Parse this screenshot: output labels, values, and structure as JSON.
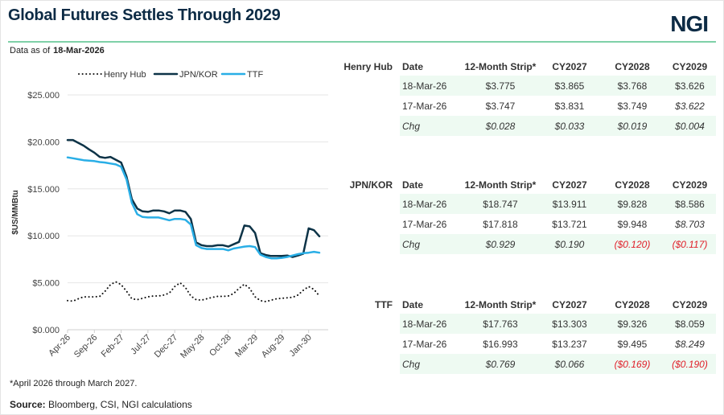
{
  "header": {
    "title": "Global Futures Settles Through 2029",
    "logo": "NGI",
    "as_of_label": "Data as of",
    "as_of_date": "18-Mar-2026"
  },
  "chart_data": {
    "type": "line",
    "ylabel": "$US/MMBtu",
    "ylim": [
      0,
      25
    ],
    "yticks": [
      "$0.000",
      "$5.000",
      "$10.000",
      "$15.000",
      "$20.000",
      "$25.000"
    ],
    "xticks": [
      "Apr-26",
      "Sep-26",
      "Feb-27",
      "Jul-27",
      "Dec-27",
      "May-28",
      "Oct-28",
      "Mar-29",
      "Aug-29",
      "Jan-30"
    ],
    "x_start": "Apr-26",
    "x_end": "Mar-30",
    "grid": "horizontal",
    "legend": "top",
    "series": [
      {
        "name": "Henry Hub",
        "style": "dotted",
        "color": "#111111",
        "values": [
          3.1,
          3.05,
          3.3,
          3.5,
          3.5,
          3.5,
          3.55,
          4.1,
          4.8,
          5.1,
          4.8,
          4.1,
          3.3,
          3.2,
          3.35,
          3.5,
          3.6,
          3.6,
          3.7,
          3.9,
          4.6,
          5.0,
          4.5,
          3.6,
          3.2,
          3.15,
          3.3,
          3.45,
          3.55,
          3.55,
          3.6,
          3.85,
          4.4,
          4.85,
          4.4,
          3.5,
          3.1,
          3.0,
          3.15,
          3.3,
          3.35,
          3.4,
          3.45,
          3.7,
          4.2,
          4.6,
          4.3,
          3.6
        ]
      },
      {
        "name": "JPN/KOR",
        "style": "solid",
        "color": "#0d3347",
        "values": [
          20.2,
          20.2,
          19.9,
          19.6,
          19.2,
          18.85,
          18.4,
          18.3,
          18.4,
          18.1,
          17.8,
          16.3,
          13.9,
          12.9,
          12.6,
          12.55,
          12.7,
          12.7,
          12.6,
          12.4,
          12.7,
          12.7,
          12.55,
          11.8,
          9.3,
          9.0,
          8.9,
          8.9,
          9.0,
          9.0,
          8.85,
          9.1,
          9.35,
          11.1,
          11.0,
          10.3,
          8.15,
          7.95,
          7.85,
          7.85,
          7.85,
          7.9,
          7.75,
          7.9,
          8.1,
          10.8,
          10.6,
          9.95
        ]
      },
      {
        "name": "TTF",
        "style": "solid",
        "color": "#29aee6",
        "values": [
          18.35,
          18.25,
          18.15,
          18.05,
          18.0,
          17.95,
          17.85,
          17.8,
          17.7,
          17.6,
          17.35,
          16.0,
          13.5,
          12.3,
          12.0,
          11.95,
          11.95,
          11.95,
          11.8,
          11.65,
          11.8,
          11.8,
          11.7,
          11.2,
          9.0,
          8.7,
          8.6,
          8.6,
          8.6,
          8.6,
          8.45,
          8.65,
          8.75,
          8.85,
          8.9,
          8.8,
          8.0,
          7.75,
          7.6,
          7.6,
          7.65,
          7.75,
          7.9,
          8.05,
          8.15,
          8.2,
          8.3,
          8.2
        ]
      }
    ]
  },
  "tables": [
    {
      "name": "Henry Hub",
      "headers": [
        "Date",
        "12-Month Strip*",
        "CY2027",
        "CY2028",
        "CY2029"
      ],
      "rows": [
        [
          "18-Mar-26",
          "$3.775",
          "$3.865",
          "$3.768",
          "$3.626"
        ],
        [
          "17-Mar-26",
          "$3.747",
          "$3.831",
          "$3.749",
          "$3.622"
        ],
        [
          "Chg",
          "$0.028",
          "$0.033",
          "$0.019",
          "$0.004"
        ]
      ]
    },
    {
      "name": "JPN/KOR",
      "headers": [
        "Date",
        "12-Month Strip*",
        "CY2027",
        "CY2028",
        "CY2029"
      ],
      "rows": [
        [
          "18-Mar-26",
          "$18.747",
          "$13.911",
          "$9.828",
          "$8.586"
        ],
        [
          "17-Mar-26",
          "$17.818",
          "$13.721",
          "$9.948",
          "$8.703"
        ],
        [
          "Chg",
          "$0.929",
          "$0.190",
          "($0.120)",
          "($0.117)"
        ]
      ]
    },
    {
      "name": "TTF",
      "headers": [
        "Date",
        "12-Month Strip*",
        "CY2027",
        "CY2028",
        "CY2029"
      ],
      "rows": [
        [
          "18-Mar-26",
          "$17.763",
          "$13.303",
          "$9.326",
          "$8.059"
        ],
        [
          "17-Mar-26",
          "$16.993",
          "$13.237",
          "$9.495",
          "$8.249"
        ],
        [
          "Chg",
          "$0.769",
          "$0.066",
          "($0.169)",
          "($0.190)"
        ]
      ]
    }
  ],
  "colors": {
    "accent_rule": "#7fd0a8",
    "title": "#0d2b45",
    "negative": "#e0202a",
    "row_shade": "#eefaf2"
  },
  "footnote": "*April 2026 through March 2027.",
  "source": {
    "label": "Source:",
    "text": " Bloomberg, CSI, NGI calculations"
  }
}
